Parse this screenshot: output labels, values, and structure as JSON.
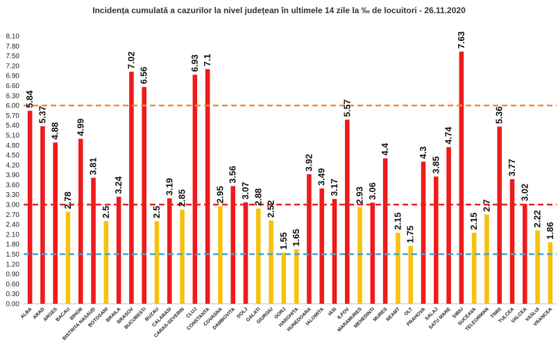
{
  "chart_data": {
    "type": "bar",
    "title": "Incidența cumulată a cazurilor la nivel județean în ultimele 14 zile la ‰ de locuitori - 26.11.2020",
    "categories": [
      "ALBA",
      "ARAD",
      "ARGES",
      "BACAU",
      "BIHOR",
      "BISTRITA NASAUD",
      "BOTOSANI",
      "BRAILA",
      "BRASOV",
      "BUCURESTI",
      "BUZAU",
      "CALARASI",
      "CARAS-SEVERIN",
      "CLUJ",
      "CONSTANTA",
      "COVASNA",
      "DAMBOVITA",
      "DOLJ",
      "GALATI",
      "GIURGIU",
      "GORJ",
      "HARGHITA",
      "HUNEDOARA",
      "IALOMITA",
      "IASI",
      "ILFOV",
      "MARAMURES",
      "MEHEDINTI",
      "MURES",
      "NEAMT",
      "OLT",
      "PRAHOVA",
      "SALAJ",
      "SATU MARE",
      "SIBIU",
      "SUCEAVA",
      "TELEORMAN",
      "TIMIS",
      "TULCEA",
      "VALCEA",
      "VASLUI",
      "VRANCEA"
    ],
    "values": [
      5.84,
      5.37,
      4.88,
      2.78,
      4.99,
      3.81,
      2.5,
      3.24,
      7.02,
      6.56,
      2.5,
      3.19,
      2.85,
      6.93,
      7.1,
      2.95,
      3.56,
      3.07,
      2.88,
      2.52,
      1.55,
      1.65,
      3.92,
      3.49,
      3.17,
      5.57,
      2.93,
      3.06,
      4.4,
      2.15,
      1.75,
      4.3,
      3.85,
      4.74,
      7.63,
      2.15,
      2.7,
      5.36,
      3.77,
      3.02,
      2.22,
      1.86
    ],
    "value_labels": [
      "5.84",
      "5.37",
      "4.88",
      "2.78",
      "4.99",
      "3.81",
      "2.5",
      "3.24",
      "7.02",
      "6.56",
      "2.5",
      "3.19",
      "2.85",
      "6.93",
      "7.1",
      "2.95",
      "3.56",
      "3.07",
      "2.88",
      "2.52",
      "1.55",
      "1.65",
      "3.92",
      "3.49",
      "3.17",
      "5.57",
      "2.93",
      "3.06",
      "4.4",
      "2.15",
      "1.75",
      "4.3",
      "3.85",
      "4.74",
      "7.63",
      "2.15",
      "2.7",
      "5.36",
      "3.77",
      "3.02",
      "2.22",
      "1.86"
    ],
    "y_ticks": [
      "0.00",
      "0.30",
      "0.60",
      "0.90",
      "1.20",
      "1.50",
      "1.80",
      "2.10",
      "2.40",
      "2.70",
      "3.00",
      "3.30",
      "3.60",
      "3.90",
      "4.20",
      "4.50",
      "4.80",
      "5.10",
      "5.40",
      "5.70",
      "6.00",
      "6.30",
      "6.60",
      "6.90",
      "7.20",
      "7.50",
      "7.80",
      "8.10"
    ],
    "ylim": [
      0,
      8.1
    ],
    "xlabel": "",
    "ylabel": "",
    "grid": false,
    "thresholds": [
      {
        "value": 1.5,
        "color": "#3fa3d6",
        "style": "dashed"
      },
      {
        "value": 3.0,
        "color": "#e81e1e",
        "style": "dashed"
      },
      {
        "value": 6.0,
        "color": "#f08a3c",
        "style": "dashed"
      }
    ],
    "bar_colors": {
      "red": "#ee1b1b",
      "yellow": "#f6c20f"
    },
    "color_rule": "red above 3.00, yellow at or below 3.00"
  }
}
